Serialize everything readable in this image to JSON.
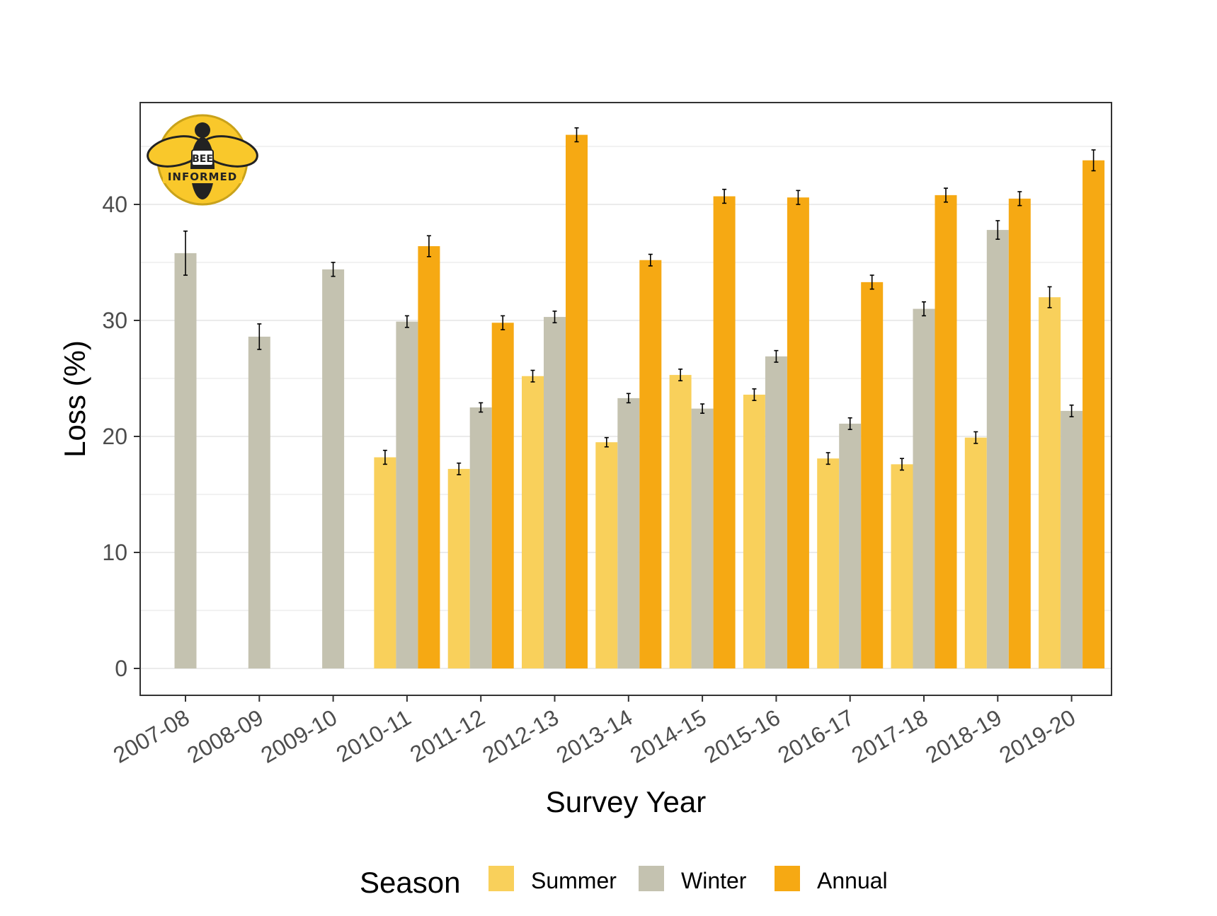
{
  "chart_data": {
    "type": "bar",
    "title": "",
    "xlabel": "Survey Year",
    "ylabel": "Loss (%)",
    "ylim": [
      0,
      48
    ],
    "yticks": [
      0,
      10,
      20,
      30,
      40
    ],
    "grid": true,
    "categories": [
      "2007-08",
      "2008-09",
      "2009-10",
      "2010-11",
      "2011-12",
      "2012-13",
      "2013-14",
      "2014-15",
      "2015-16",
      "2016-17",
      "2017-18",
      "2018-19",
      "2019-20"
    ],
    "legend": {
      "title": "Season",
      "position": "bottom"
    },
    "series": [
      {
        "name": "Summer",
        "color": "#f9d05b",
        "values": [
          null,
          null,
          null,
          18.2,
          17.2,
          25.2,
          19.5,
          25.3,
          23.6,
          18.1,
          17.6,
          19.9,
          32.0
        ],
        "errors": [
          null,
          null,
          null,
          0.6,
          0.5,
          0.5,
          0.4,
          0.5,
          0.5,
          0.5,
          0.5,
          0.5,
          0.9
        ]
      },
      {
        "name": "Winter",
        "color": "#c4c2b0",
        "values": [
          35.8,
          28.6,
          34.4,
          29.9,
          22.5,
          30.3,
          23.3,
          22.4,
          26.9,
          21.1,
          31.0,
          37.8,
          22.2
        ],
        "errors": [
          1.9,
          1.1,
          0.6,
          0.5,
          0.4,
          0.5,
          0.4,
          0.4,
          0.5,
          0.5,
          0.6,
          0.8,
          0.5
        ]
      },
      {
        "name": "Annual",
        "color": "#f6a913",
        "values": [
          null,
          null,
          null,
          36.4,
          29.8,
          46.0,
          35.2,
          40.7,
          40.6,
          33.3,
          40.8,
          40.5,
          43.8
        ],
        "errors": [
          null,
          null,
          null,
          0.9,
          0.6,
          0.6,
          0.5,
          0.6,
          0.6,
          0.6,
          0.6,
          0.6,
          0.9
        ]
      }
    ]
  },
  "logo": {
    "line1": "BEE",
    "line2": "INFORMED"
  }
}
